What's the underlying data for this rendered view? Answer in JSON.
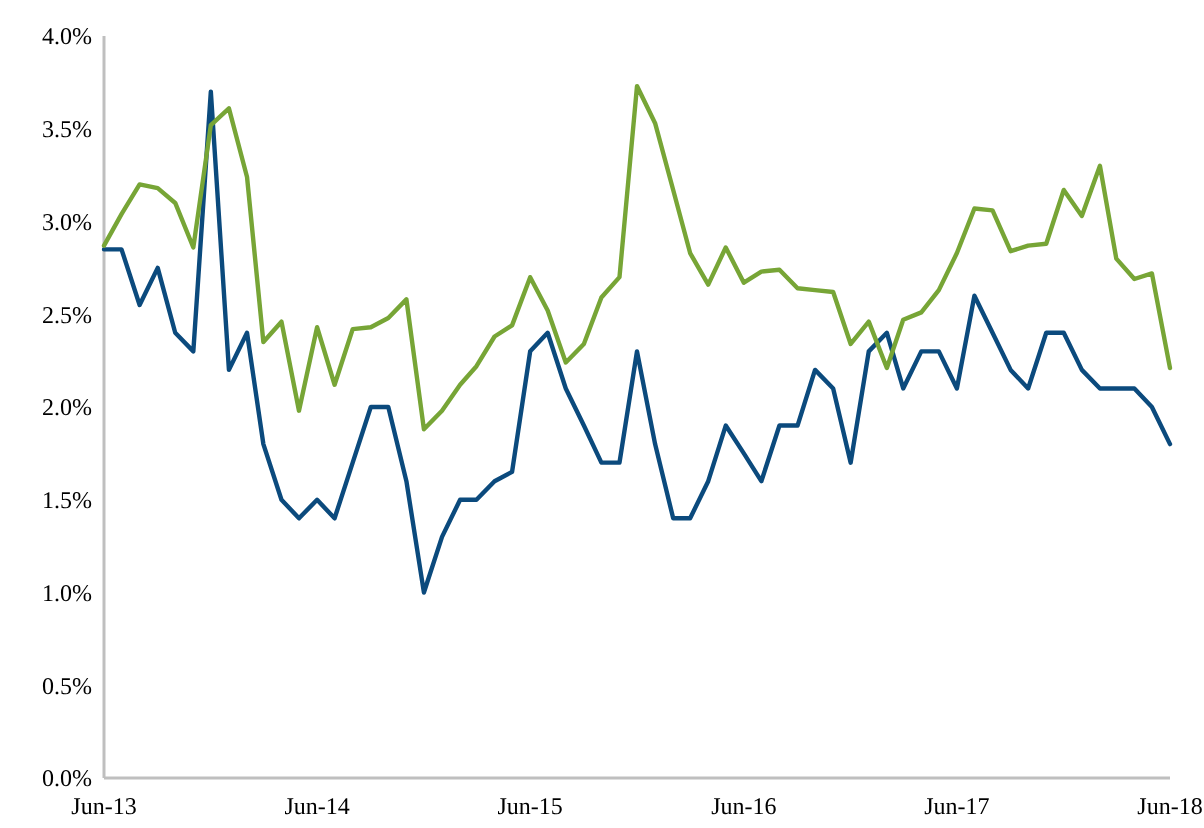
{
  "chart_data": {
    "type": "line",
    "x": [
      "2013-06",
      "2013-07",
      "2013-08",
      "2013-09",
      "2013-10",
      "2013-11",
      "2013-12",
      "2014-01",
      "2014-02",
      "2014-03",
      "2014-04",
      "2014-05",
      "2014-06",
      "2014-07",
      "2014-08",
      "2014-09",
      "2014-10",
      "2014-11",
      "2014-12",
      "2015-01",
      "2015-02",
      "2015-03",
      "2015-04",
      "2015-05",
      "2015-06",
      "2015-07",
      "2015-08",
      "2015-09",
      "2015-10",
      "2015-11",
      "2015-12",
      "2016-01",
      "2016-02",
      "2016-03",
      "2016-04",
      "2016-05",
      "2016-06",
      "2016-07",
      "2016-08",
      "2016-09",
      "2016-10",
      "2016-11",
      "2016-12",
      "2017-01",
      "2017-02",
      "2017-03",
      "2017-04",
      "2017-05",
      "2017-06",
      "2017-07",
      "2017-08",
      "2017-09",
      "2017-10",
      "2017-11",
      "2017-12",
      "2018-01",
      "2018-02",
      "2018-03",
      "2018-04",
      "2018-05",
      "2018-06"
    ],
    "series": [
      {
        "color": "#0b4a7d",
        "values": [
          2.85,
          2.85,
          2.55,
          2.75,
          2.4,
          2.3,
          3.7,
          2.2,
          2.4,
          1.8,
          1.5,
          1.4,
          1.5,
          1.4,
          1.7,
          2.0,
          2.0,
          1.6,
          1.0,
          1.3,
          1.5,
          1.5,
          1.6,
          1.65,
          2.3,
          2.4,
          2.1,
          1.9,
          1.7,
          1.7,
          2.3,
          1.8,
          1.4,
          1.4,
          1.6,
          1.9,
          1.75,
          1.6,
          1.9,
          1.9,
          2.2,
          2.1,
          1.7,
          2.3,
          2.4,
          2.1,
          2.3,
          2.3,
          2.1,
          2.6,
          2.4,
          2.2,
          2.1,
          2.4,
          2.4,
          2.2,
          2.1,
          2.1,
          2.1,
          2.0,
          1.8
        ]
      },
      {
        "color": "#77a536",
        "values": [
          2.87,
          3.04,
          3.2,
          3.18,
          3.1,
          2.86,
          3.52,
          3.61,
          3.24,
          2.35,
          2.46,
          1.98,
          2.43,
          2.12,
          2.42,
          2.43,
          2.48,
          2.58,
          1.88,
          1.98,
          2.12,
          2.22,
          2.38,
          2.44,
          2.7,
          2.52,
          2.24,
          2.34,
          2.59,
          2.7,
          3.73,
          3.53,
          3.17,
          2.83,
          2.66,
          2.86,
          2.67,
          2.73,
          2.74,
          2.64,
          2.63,
          2.62,
          2.34,
          2.46,
          2.21,
          2.47,
          2.51,
          2.63,
          2.83,
          3.07,
          3.06,
          2.84,
          2.87,
          2.88,
          3.17,
          3.03,
          3.3,
          2.8,
          2.69,
          2.72,
          2.21
        ]
      }
    ],
    "xlim": [
      "2013-06",
      "2018-06"
    ],
    "xticks": [
      {
        "value": "2013-06",
        "label": "Jun-13"
      },
      {
        "value": "2014-06",
        "label": "Jun-14"
      },
      {
        "value": "2015-06",
        "label": "Jun-15"
      },
      {
        "value": "2016-06",
        "label": "Jun-16"
      },
      {
        "value": "2017-06",
        "label": "Jun-17"
      },
      {
        "value": "2018-06",
        "label": "Jun-18"
      }
    ],
    "ylim": [
      0,
      4
    ],
    "yticks": [
      {
        "value": 0,
        "label": "0.0%"
      },
      {
        "value": 0.5,
        "label": "0.5%"
      },
      {
        "value": 1,
        "label": "1.0%"
      },
      {
        "value": 1.5,
        "label": "1.5%"
      },
      {
        "value": 2,
        "label": "2.0%"
      },
      {
        "value": 2.5,
        "label": "2.5%"
      },
      {
        "value": 3,
        "label": "3.0%"
      },
      {
        "value": 3.5,
        "label": "3.5%"
      },
      {
        "value": 4,
        "label": "4.0%"
      }
    ],
    "grid": false,
    "line_style": "solid"
  }
}
